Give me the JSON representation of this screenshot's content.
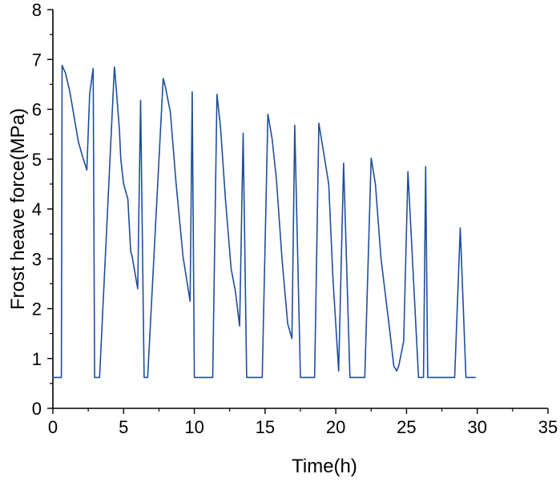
{
  "chart_data": {
    "type": "line",
    "xlabel": "Time(h)",
    "ylabel": "Frost heave force(MPa)",
    "xlim": [
      0,
      35
    ],
    "ylim": [
      0,
      8
    ],
    "xticks": [
      0,
      5,
      10,
      15,
      20,
      25,
      30,
      35
    ],
    "yticks": [
      0,
      1,
      2,
      3,
      4,
      5,
      6,
      7,
      8
    ],
    "grid": false,
    "line_color": "#1f4e9c",
    "series": [
      {
        "x": [
          0,
          0.6,
          0.65,
          0.9,
          1.2,
          1.5,
          1.8,
          2.1,
          2.4,
          2.6,
          2.85,
          2.95,
          3.3,
          4.35,
          4.4,
          4.7,
          4.8,
          5.0,
          5.3,
          5.5,
          5.6,
          6.0,
          6.2,
          6.45,
          6.7,
          7.8,
          7.95,
          8.3,
          8.7,
          9.2,
          9.7,
          9.85,
          10.0,
          11.3,
          11.6,
          11.85,
          12.2,
          12.6,
          12.9,
          13.2,
          13.45,
          13.7,
          14.8,
          15.2,
          15.5,
          15.8,
          16.2,
          16.6,
          16.9,
          17.1,
          17.5,
          18.5,
          18.8,
          19.1,
          19.5,
          19.8,
          20.2,
          20.55,
          21.0,
          22.05,
          22.5,
          22.8,
          23.2,
          23.8,
          24.1,
          24.3,
          24.45,
          24.8,
          25.1,
          25.85,
          26.2,
          26.35,
          26.5,
          28.4,
          28.8,
          29.2,
          29.9
        ],
        "y": [
          0.62,
          0.62,
          6.88,
          6.72,
          6.35,
          5.85,
          5.35,
          5.05,
          4.78,
          6.3,
          6.82,
          0.62,
          0.62,
          6.85,
          6.7,
          5.6,
          5.0,
          4.5,
          4.2,
          3.15,
          3.05,
          2.4,
          6.18,
          0.62,
          0.62,
          6.62,
          6.45,
          5.95,
          4.55,
          3.05,
          2.15,
          6.35,
          0.62,
          0.62,
          6.3,
          5.65,
          4.2,
          2.8,
          2.35,
          1.65,
          5.52,
          0.62,
          0.62,
          5.9,
          5.4,
          4.6,
          3.0,
          1.7,
          1.4,
          5.68,
          0.62,
          0.62,
          5.72,
          5.2,
          4.5,
          2.6,
          0.75,
          4.92,
          0.62,
          0.62,
          5.02,
          4.5,
          3.0,
          1.6,
          0.85,
          0.75,
          0.85,
          1.35,
          4.75,
          0.62,
          0.62,
          4.85,
          0.62,
          0.62,
          3.62,
          0.62,
          0.62
        ]
      }
    ]
  }
}
